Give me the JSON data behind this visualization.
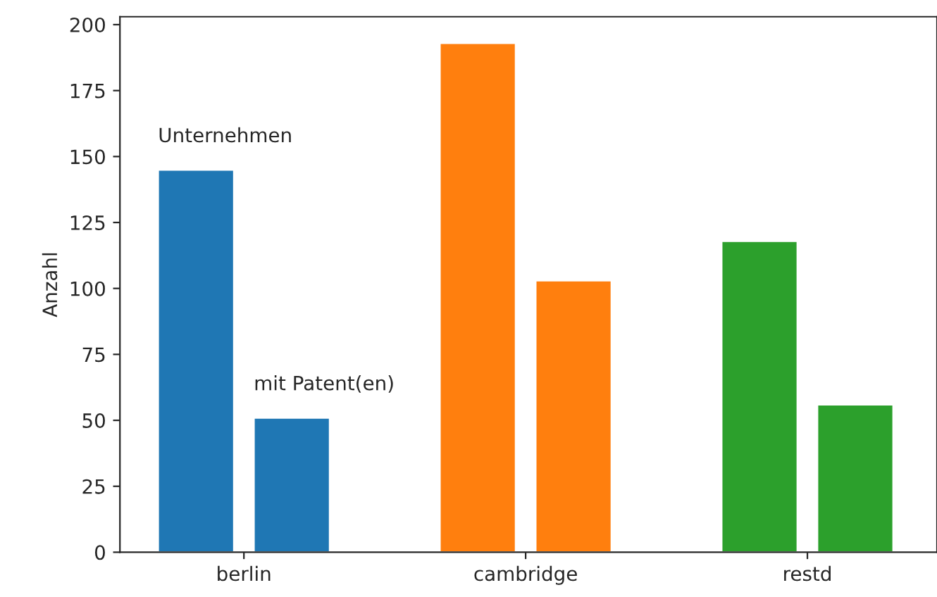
{
  "chart_data": {
    "type": "bar",
    "ylabel": "Anzahl",
    "categories": [
      "berlin",
      "cambridge",
      "restd"
    ],
    "series": [
      {
        "name": "Unternehmen",
        "colors": [
          "#1f77b4",
          "#ff7f0e",
          "#2ca02c"
        ],
        "values": [
          145,
          193,
          118
        ]
      },
      {
        "name": "mit Patent(en)",
        "colors": [
          "#1f77b4",
          "#ff7f0e",
          "#2ca02c"
        ],
        "values": [
          51,
          103,
          56
        ]
      }
    ],
    "ylim": [
      0,
      203
    ],
    "yticks": [
      0,
      25,
      50,
      75,
      100,
      125,
      150,
      175,
      200
    ],
    "grid": false,
    "legend": false
  }
}
